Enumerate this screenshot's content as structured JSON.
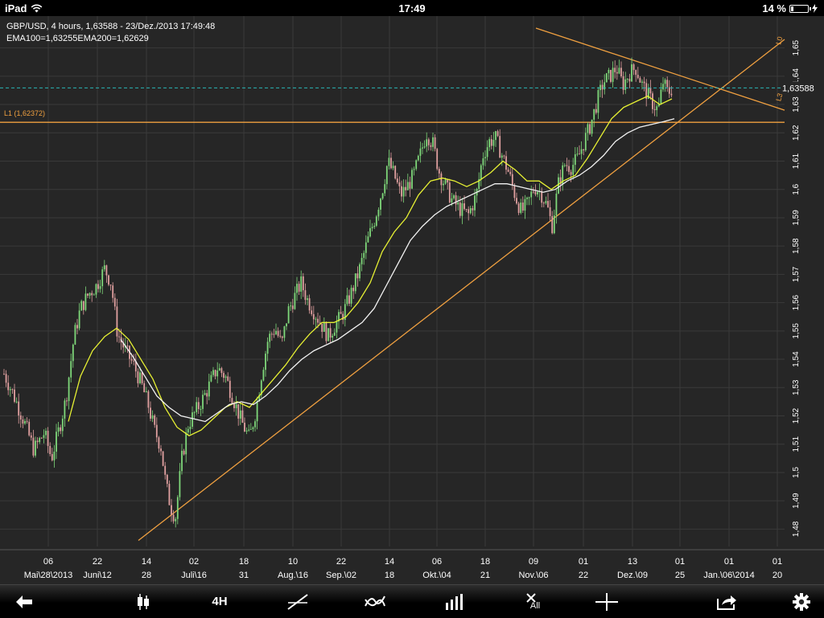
{
  "status_bar": {
    "device": "iPad",
    "time": "17:49",
    "battery": "14 %",
    "battery_level": 0.14
  },
  "header": {
    "line1": "GBP/USD, 4 hours, 1,63588 - 23/Dez./2013 17:49:48",
    "line2": "EMA100=1,63255EMA200=1,62629"
  },
  "toolbar": {
    "back_icon": "arrow-left-icon",
    "chart_type_icon": "candlestick-icon",
    "timeframe_label": "4H",
    "draw_line_icon": "trendline-icon",
    "indicator_icon": "indicator-icon",
    "volume_icon": "bars-icon",
    "clear_all_label": "All",
    "crosshair_icon": "crosshair-icon",
    "share_icon": "share-icon",
    "settings_icon": "gear-icon"
  },
  "colors": {
    "background": "#262626",
    "grid": "#3a3a3a",
    "up_candle": "#7fd87a",
    "down_candle": "#e0a0a0",
    "ema100": "#e6f033",
    "ema200": "#f2f2f2",
    "trendline": "#f0a040",
    "price_line": "#2ab5b5",
    "axis_text": "#ffffff"
  },
  "chart_data": {
    "type": "candlestick",
    "symbol": "GBP/USD",
    "ylim": [
      1.475,
      1.655
    ],
    "y_ticks": [
      {
        "value": 1.48,
        "label": "1,48"
      },
      {
        "value": 1.49,
        "label": "1,49"
      },
      {
        "value": 1.5,
        "label": "1,5"
      },
      {
        "value": 1.51,
        "label": "1,51"
      },
      {
        "value": 1.52,
        "label": "1,52"
      },
      {
        "value": 1.53,
        "label": "1,53"
      },
      {
        "value": 1.54,
        "label": "1,54"
      },
      {
        "value": 1.55,
        "label": "1,55"
      },
      {
        "value": 1.56,
        "label": "1,56"
      },
      {
        "value": 1.57,
        "label": "1,57"
      },
      {
        "value": 1.58,
        "label": "1,58"
      },
      {
        "value": 1.59,
        "label": "1,59"
      },
      {
        "value": 1.6,
        "label": "1,6"
      },
      {
        "value": 1.61,
        "label": "1,61"
      },
      {
        "value": 1.62,
        "label": "1,62"
      },
      {
        "value": 1.63,
        "label": "1,63"
      },
      {
        "value": 1.64,
        "label": "1,64"
      },
      {
        "value": 1.65,
        "label": "1,65"
      }
    ],
    "x_ticks": [
      {
        "day": "06",
        "date": "Mai\\28\\2013"
      },
      {
        "day": "22",
        "date": "Juni\\12"
      },
      {
        "day": "14",
        "date": "28"
      },
      {
        "day": "02",
        "date": "Juli\\16"
      },
      {
        "day": "18",
        "date": "31"
      },
      {
        "day": "10",
        "date": "Aug.\\16"
      },
      {
        "day": "22",
        "date": "Sep.\\02"
      },
      {
        "day": "14",
        "date": "18"
      },
      {
        "day": "06",
        "date": "Okt.\\04"
      },
      {
        "day": "18",
        "date": "21"
      },
      {
        "day": "09",
        "date": "Nov.\\06"
      },
      {
        "day": "01",
        "date": "22"
      },
      {
        "day": "13",
        "date": "Dez.\\09"
      },
      {
        "day": "01",
        "date": "25"
      },
      {
        "day": "01",
        "date": "Jan.\\06\\2014"
      },
      {
        "day": "01",
        "date": "20"
      }
    ],
    "last_price": 1.63588,
    "last_price_label": "1,63588",
    "horizontal_line": {
      "label": "L1 (1,62372)",
      "value": 1.62372
    },
    "trendline_labels": [
      "L0",
      "L3"
    ],
    "price_path": [
      [
        0,
        1.538
      ],
      [
        16,
        1.528
      ],
      [
        30,
        1.518
      ],
      [
        42,
        1.508
      ],
      [
        55,
        1.514
      ],
      [
        64,
        1.505
      ],
      [
        74,
        1.516
      ],
      [
        82,
        1.526
      ],
      [
        92,
        1.548
      ],
      [
        100,
        1.558
      ],
      [
        110,
        1.563
      ],
      [
        120,
        1.566
      ],
      [
        130,
        1.572
      ],
      [
        138,
        1.567
      ],
      [
        146,
        1.549
      ],
      [
        156,
        1.543
      ],
      [
        166,
        1.538
      ],
      [
        176,
        1.531
      ],
      [
        184,
        1.524
      ],
      [
        192,
        1.515
      ],
      [
        200,
        1.509
      ],
      [
        206,
        1.496
      ],
      [
        212,
        1.488
      ],
      [
        218,
        1.484
      ],
      [
        226,
        1.505
      ],
      [
        234,
        1.517
      ],
      [
        244,
        1.522
      ],
      [
        254,
        1.527
      ],
      [
        262,
        1.532
      ],
      [
        270,
        1.537
      ],
      [
        280,
        1.534
      ],
      [
        290,
        1.526
      ],
      [
        300,
        1.518
      ],
      [
        310,
        1.512
      ],
      [
        318,
        1.522
      ],
      [
        325,
        1.535
      ],
      [
        333,
        1.547
      ],
      [
        342,
        1.551
      ],
      [
        350,
        1.545
      ],
      [
        358,
        1.557
      ],
      [
        366,
        1.562
      ],
      [
        374,
        1.567
      ],
      [
        382,
        1.561
      ],
      [
        392,
        1.556
      ],
      [
        400,
        1.552
      ],
      [
        408,
        1.548
      ],
      [
        416,
        1.552
      ],
      [
        426,
        1.556
      ],
      [
        436,
        1.563
      ],
      [
        446,
        1.571
      ],
      [
        456,
        1.581
      ],
      [
        466,
        1.59
      ],
      [
        476,
        1.601
      ],
      [
        482,
        1.61
      ],
      [
        490,
        1.605
      ],
      [
        498,
        1.598
      ],
      [
        506,
        1.601
      ],
      [
        514,
        1.605
      ],
      [
        522,
        1.612
      ],
      [
        530,
        1.62
      ],
      [
        538,
        1.616
      ],
      [
        546,
        1.606
      ],
      [
        554,
        1.601
      ],
      [
        562,
        1.596
      ],
      [
        572,
        1.593
      ],
      [
        582,
        1.591
      ],
      [
        592,
        1.598
      ],
      [
        600,
        1.612
      ],
      [
        608,
        1.617
      ],
      [
        616,
        1.618
      ],
      [
        624,
        1.612
      ],
      [
        632,
        1.606
      ],
      [
        640,
        1.598
      ],
      [
        648,
        1.592
      ],
      [
        656,
        1.595
      ],
      [
        664,
        1.601
      ],
      [
        672,
        1.599
      ],
      [
        680,
        1.594
      ],
      [
        686,
        1.587
      ],
      [
        694,
        1.602
      ],
      [
        702,
        1.609
      ],
      [
        710,
        1.608
      ],
      [
        718,
        1.611
      ],
      [
        726,
        1.617
      ],
      [
        734,
        1.623
      ],
      [
        742,
        1.631
      ],
      [
        750,
        1.638
      ],
      [
        758,
        1.64
      ],
      [
        766,
        1.643
      ],
      [
        774,
        1.637
      ],
      [
        782,
        1.641
      ],
      [
        790,
        1.643
      ],
      [
        798,
        1.637
      ],
      [
        806,
        1.633
      ],
      [
        812,
        1.63
      ],
      [
        818,
        1.628
      ],
      [
        824,
        1.638
      ],
      [
        830,
        1.634
      ],
      [
        836,
        1.636
      ]
    ],
    "series": [
      {
        "name": "EMA100",
        "points": [
          [
            85,
            1.518
          ],
          [
            100,
            1.534
          ],
          [
            115,
            1.543
          ],
          [
            130,
            1.548
          ],
          [
            145,
            1.551
          ],
          [
            160,
            1.547
          ],
          [
            175,
            1.54
          ],
          [
            190,
            1.533
          ],
          [
            205,
            1.523
          ],
          [
            220,
            1.516
          ],
          [
            235,
            1.513
          ],
          [
            250,
            1.515
          ],
          [
            265,
            1.519
          ],
          [
            280,
            1.523
          ],
          [
            295,
            1.525
          ],
          [
            310,
            1.523
          ],
          [
            325,
            1.528
          ],
          [
            340,
            1.533
          ],
          [
            355,
            1.538
          ],
          [
            370,
            1.544
          ],
          [
            385,
            1.549
          ],
          [
            400,
            1.553
          ],
          [
            415,
            1.553
          ],
          [
            430,
            1.555
          ],
          [
            445,
            1.56
          ],
          [
            460,
            1.567
          ],
          [
            475,
            1.578
          ],
          [
            490,
            1.585
          ],
          [
            505,
            1.59
          ],
          [
            520,
            1.598
          ],
          [
            535,
            1.603
          ],
          [
            550,
            1.604
          ],
          [
            565,
            1.603
          ],
          [
            580,
            1.601
          ],
          [
            595,
            1.603
          ],
          [
            610,
            1.606
          ],
          [
            625,
            1.61
          ],
          [
            640,
            1.607
          ],
          [
            655,
            1.603
          ],
          [
            670,
            1.603
          ],
          [
            685,
            1.6
          ],
          [
            700,
            1.603
          ],
          [
            715,
            1.605
          ],
          [
            730,
            1.611
          ],
          [
            745,
            1.618
          ],
          [
            760,
            1.625
          ],
          [
            775,
            1.629
          ],
          [
            790,
            1.631
          ],
          [
            805,
            1.633
          ],
          [
            820,
            1.63
          ],
          [
            835,
            1.632
          ]
        ]
      },
      {
        "name": "EMA200",
        "points": [
          [
            150,
            1.547
          ],
          [
            165,
            1.541
          ],
          [
            180,
            1.534
          ],
          [
            195,
            1.527
          ],
          [
            210,
            1.523
          ],
          [
            225,
            1.52
          ],
          [
            240,
            1.519
          ],
          [
            255,
            1.518
          ],
          [
            270,
            1.521
          ],
          [
            285,
            1.524
          ],
          [
            300,
            1.525
          ],
          [
            315,
            1.524
          ],
          [
            330,
            1.527
          ],
          [
            345,
            1.531
          ],
          [
            360,
            1.536
          ],
          [
            375,
            1.54
          ],
          [
            390,
            1.543
          ],
          [
            405,
            1.545
          ],
          [
            420,
            1.547
          ],
          [
            435,
            1.55
          ],
          [
            450,
            1.553
          ],
          [
            465,
            1.558
          ],
          [
            480,
            1.566
          ],
          [
            495,
            1.574
          ],
          [
            510,
            1.582
          ],
          [
            525,
            1.587
          ],
          [
            540,
            1.591
          ],
          [
            555,
            1.594
          ],
          [
            570,
            1.596
          ],
          [
            585,
            1.598
          ],
          [
            600,
            1.6
          ],
          [
            615,
            1.602
          ],
          [
            630,
            1.602
          ],
          [
            645,
            1.601
          ],
          [
            660,
            1.6
          ],
          [
            675,
            1.599
          ],
          [
            690,
            1.6
          ],
          [
            705,
            1.603
          ],
          [
            720,
            1.605
          ],
          [
            735,
            1.608
          ],
          [
            750,
            1.612
          ],
          [
            765,
            1.617
          ],
          [
            780,
            1.62
          ],
          [
            795,
            1.622
          ],
          [
            810,
            1.623
          ],
          [
            825,
            1.624
          ],
          [
            838,
            1.625
          ]
        ]
      }
    ]
  }
}
